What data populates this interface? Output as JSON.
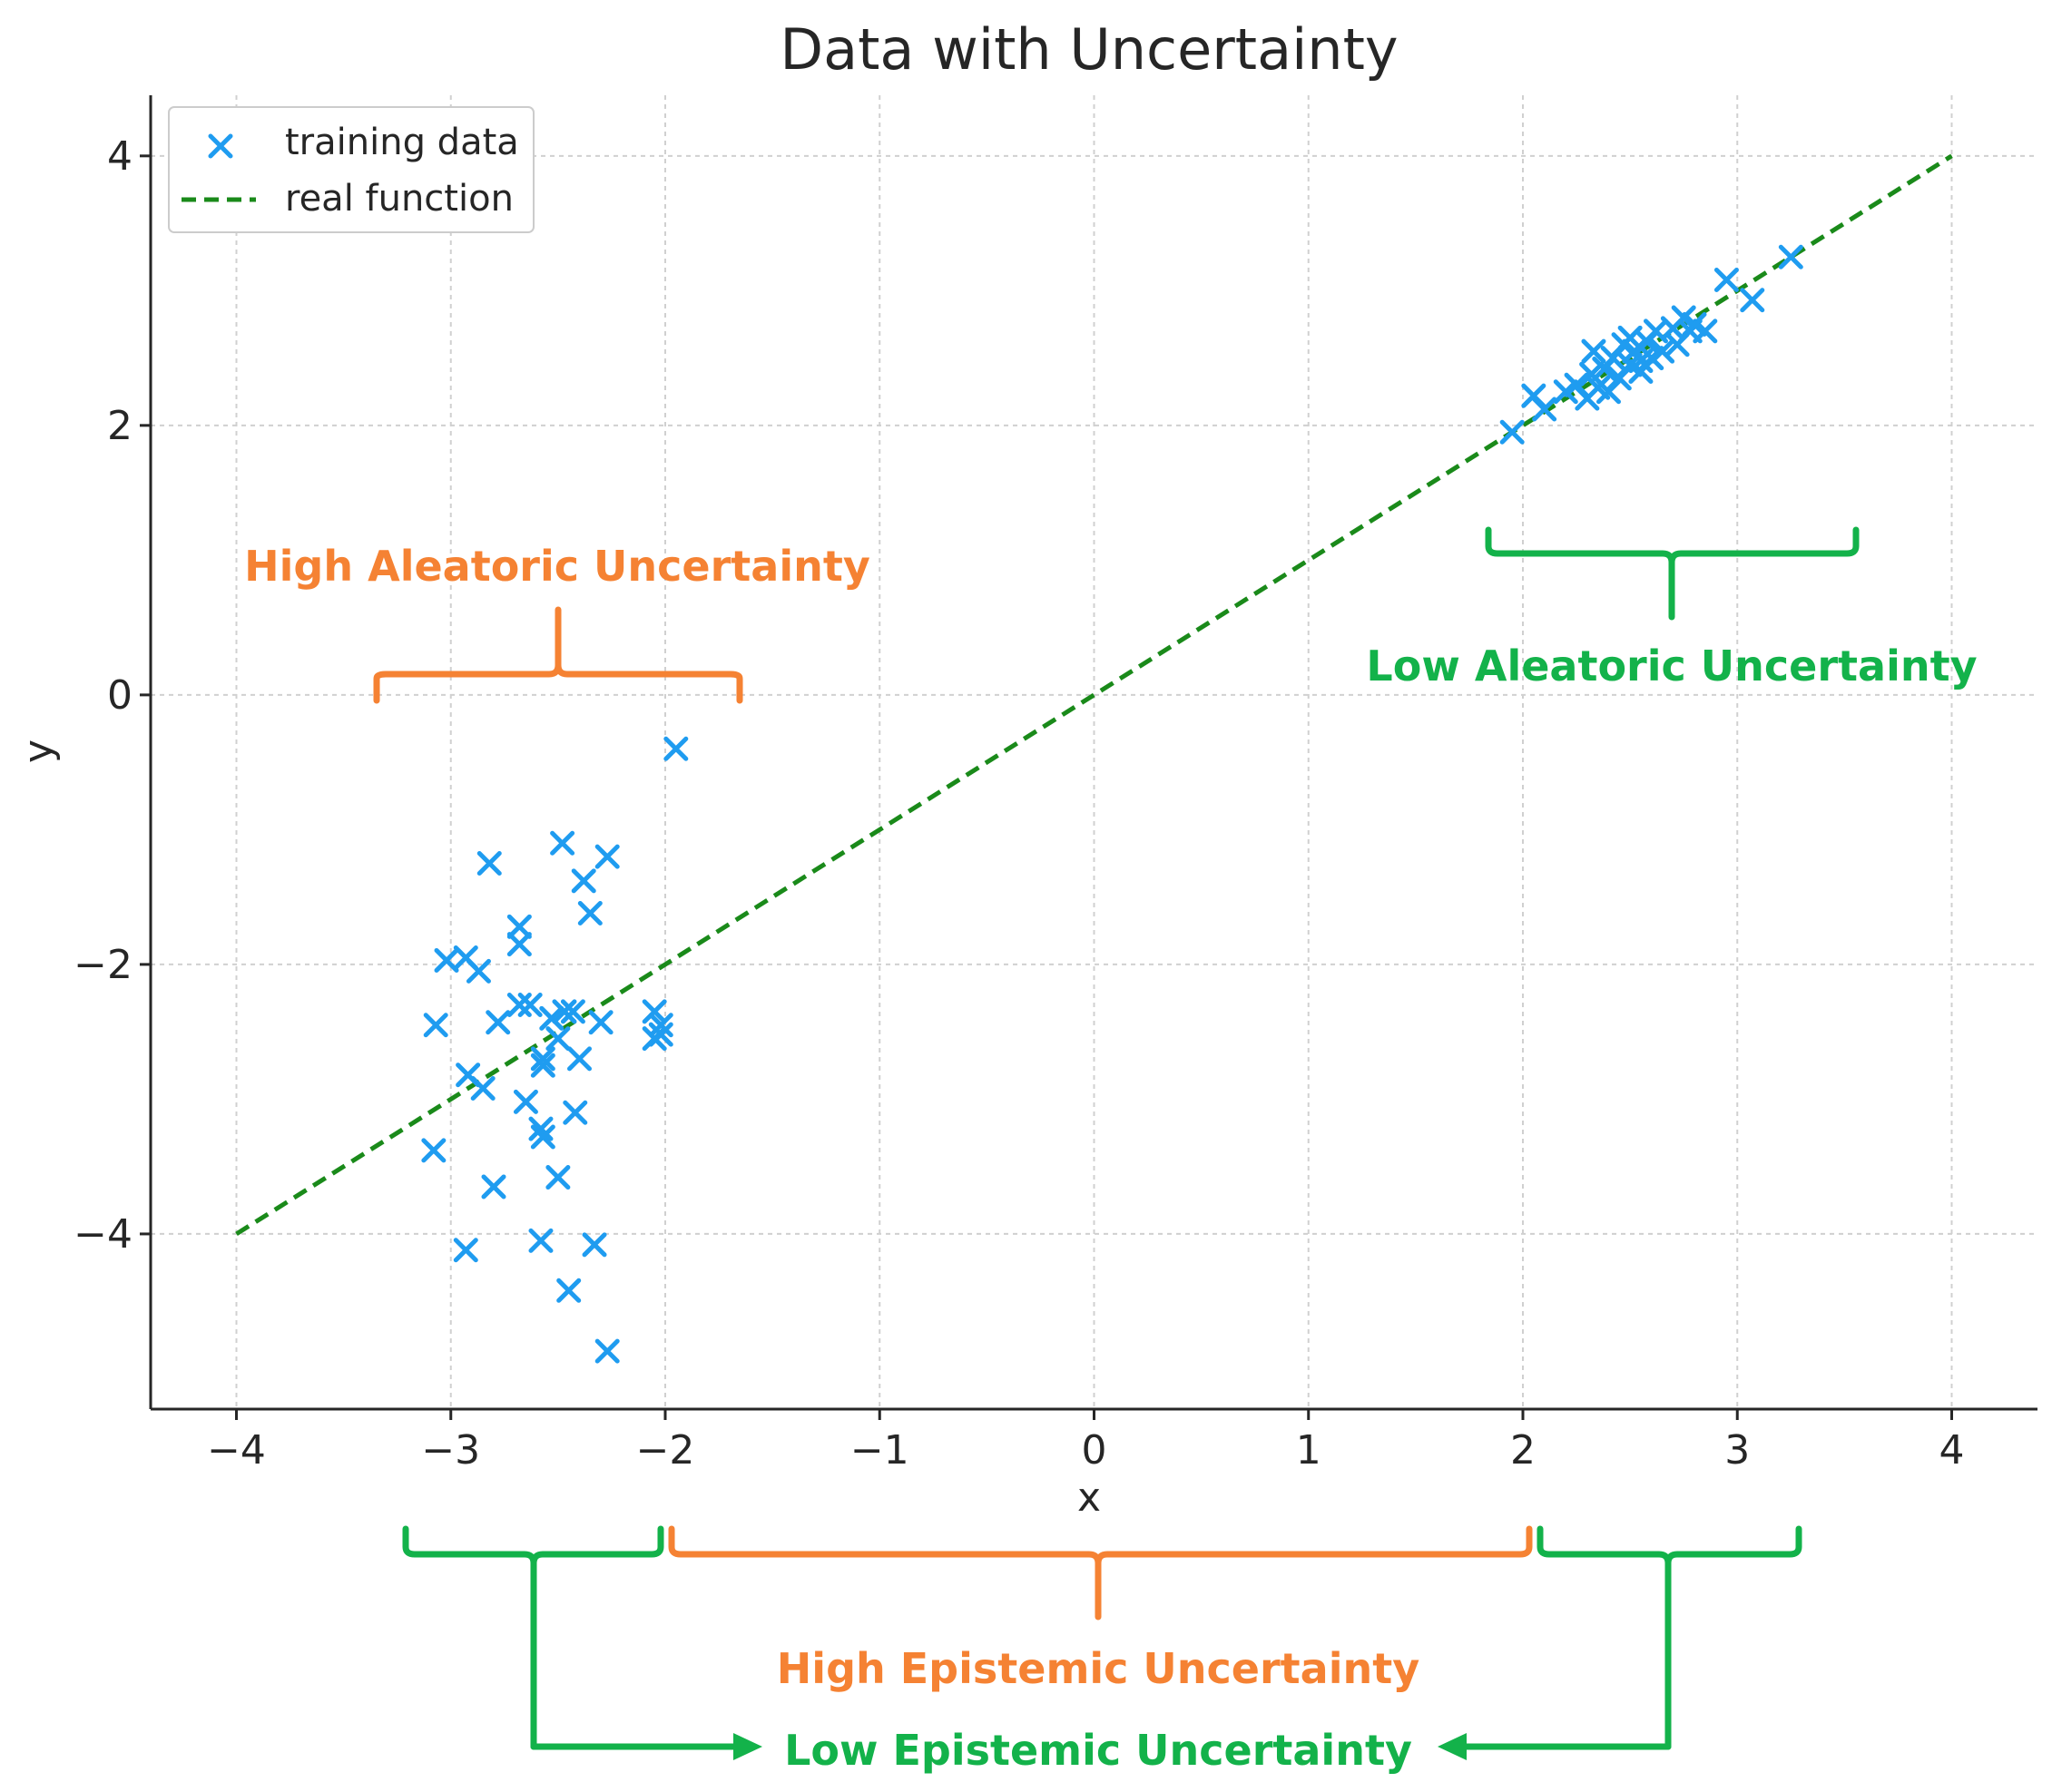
{
  "chart_data": {
    "type": "scatter",
    "title": "Data with Uncertainty",
    "xlabel": "x",
    "ylabel": "y",
    "xlim": [
      -4.4,
      4.4
    ],
    "ylim": [
      -5.3,
      4.45
    ],
    "grid": true,
    "legend_position": "top-left",
    "xticks": [
      -4,
      -3,
      -2,
      -1,
      0,
      1,
      2,
      3,
      4
    ],
    "xtick_labels": [
      "−4",
      "−3",
      "−2",
      "−1",
      "0",
      "1",
      "2",
      "3",
      "4"
    ],
    "yticks": [
      -4,
      -2,
      0,
      2,
      4
    ],
    "ytick_labels": [
      "−4",
      "−2",
      "0",
      "2",
      "4"
    ],
    "colors": {
      "points": "#1f9cf0",
      "line": "#1a8a1a",
      "orange": "#f58233",
      "green": "#13b24a",
      "grid": "#d0d0d0",
      "axis": "#262626"
    },
    "series": [
      {
        "name": "training data",
        "kind": "scatter",
        "marker": "x",
        "points": [
          [
            -1.95,
            -0.4
          ],
          [
            -2.48,
            -1.1
          ],
          [
            -2.27,
            -1.2
          ],
          [
            -2.82,
            -1.25
          ],
          [
            -2.38,
            -1.38
          ],
          [
            -2.35,
            -1.62
          ],
          [
            -2.68,
            -1.72
          ],
          [
            -2.68,
            -1.85
          ],
          [
            -3.02,
            -1.97
          ],
          [
            -2.93,
            -1.95
          ],
          [
            -2.87,
            -2.05
          ],
          [
            -2.68,
            -2.3
          ],
          [
            -2.63,
            -2.3
          ],
          [
            -2.53,
            -2.4
          ],
          [
            -2.47,
            -2.35
          ],
          [
            -2.43,
            -2.35
          ],
          [
            -2.3,
            -2.43
          ],
          [
            -2.05,
            -2.35
          ],
          [
            -2.02,
            -2.45
          ],
          [
            -2.05,
            -2.55
          ],
          [
            -2.02,
            -2.52
          ],
          [
            -3.07,
            -2.45
          ],
          [
            -2.78,
            -2.43
          ],
          [
            -2.5,
            -2.55
          ],
          [
            -2.57,
            -2.7
          ],
          [
            -2.4,
            -2.7
          ],
          [
            -2.57,
            -2.75
          ],
          [
            -2.92,
            -2.82
          ],
          [
            -2.85,
            -2.92
          ],
          [
            -2.65,
            -3.02
          ],
          [
            -2.42,
            -3.1
          ],
          [
            -2.58,
            -3.22
          ],
          [
            -2.57,
            -3.28
          ],
          [
            -3.08,
            -3.38
          ],
          [
            -2.5,
            -3.58
          ],
          [
            -2.8,
            -3.65
          ],
          [
            -2.58,
            -4.05
          ],
          [
            -2.33,
            -4.08
          ],
          [
            -2.93,
            -4.12
          ],
          [
            -2.45,
            -4.42
          ],
          [
            -2.27,
            -4.87
          ],
          [
            1.95,
            1.95
          ],
          [
            2.05,
            2.22
          ],
          [
            2.1,
            2.12
          ],
          [
            2.2,
            2.25
          ],
          [
            2.25,
            2.3
          ],
          [
            2.3,
            2.2
          ],
          [
            2.32,
            2.38
          ],
          [
            2.33,
            2.55
          ],
          [
            2.35,
            2.28
          ],
          [
            2.38,
            2.42
          ],
          [
            2.4,
            2.25
          ],
          [
            2.42,
            2.5
          ],
          [
            2.45,
            2.35
          ],
          [
            2.47,
            2.6
          ],
          [
            2.5,
            2.45
          ],
          [
            2.5,
            2.65
          ],
          [
            2.52,
            2.55
          ],
          [
            2.55,
            2.4
          ],
          [
            2.55,
            2.48
          ],
          [
            2.58,
            2.62
          ],
          [
            2.6,
            2.5
          ],
          [
            2.62,
            2.7
          ],
          [
            2.65,
            2.55
          ],
          [
            2.7,
            2.72
          ],
          [
            2.72,
            2.6
          ],
          [
            2.75,
            2.8
          ],
          [
            2.78,
            2.7
          ],
          [
            2.8,
            2.75
          ],
          [
            2.85,
            2.7
          ],
          [
            2.95,
            3.08
          ],
          [
            3.07,
            2.93
          ],
          [
            3.25,
            3.25
          ]
        ]
      },
      {
        "name": "real function",
        "kind": "line",
        "style": "dashed",
        "x": [
          -4,
          4
        ],
        "y": [
          -4,
          4
        ]
      }
    ],
    "annotations": [
      {
        "text": "High Aleatoric Uncertainty",
        "color": "orange"
      },
      {
        "text": "Low Aleatoric Uncertainty",
        "color": "green"
      },
      {
        "text": "High Epistemic Uncertainty",
        "color": "orange"
      },
      {
        "text": "Low Epistemic Uncertainty",
        "color": "green"
      }
    ]
  }
}
